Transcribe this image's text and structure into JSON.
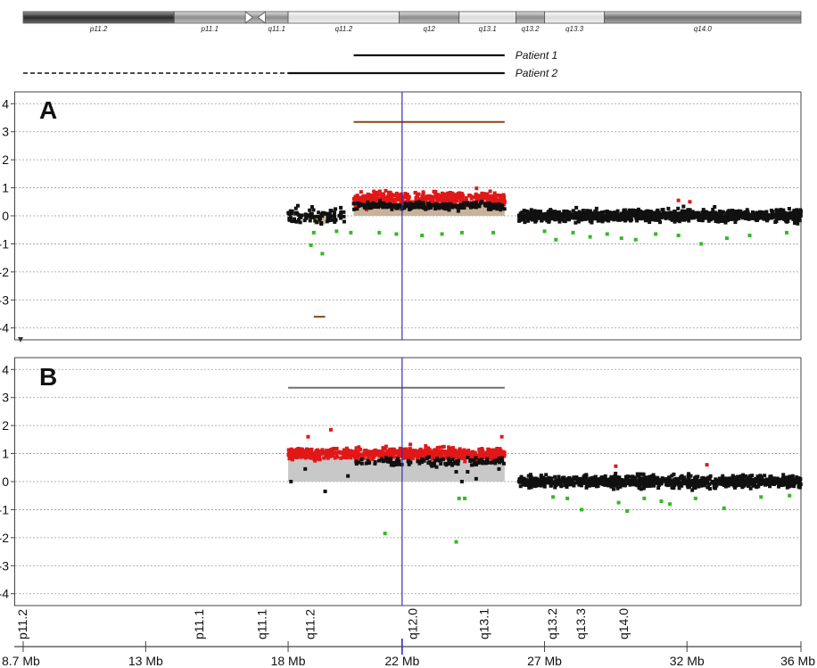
{
  "colors": {
    "gain": "#e01818",
    "neutral": "#111111",
    "loss": "#33bb22",
    "cursor": "#3030c0",
    "segmentA": "#8b4513",
    "shadeA": "#c8b39a",
    "shadeB": "#c8c8c8",
    "segmentB": "#707070"
  },
  "ideogram": {
    "bands": [
      {
        "name": "p11.2",
        "start": 8.7,
        "end": 14.0,
        "style": "dark"
      },
      {
        "name": "p11.1",
        "start": 14.0,
        "end": 16.5,
        "style": "gray"
      },
      {
        "name": "cen",
        "start": 16.5,
        "end": 17.2,
        "style": "centromere",
        "label": ""
      },
      {
        "name": "q11.1",
        "start": 17.2,
        "end": 18.0,
        "style": "gray"
      },
      {
        "name": "q11.2",
        "start": 18.0,
        "end": 21.9,
        "style": "light"
      },
      {
        "name": "q12",
        "start": 21.9,
        "end": 24.0,
        "style": "gray"
      },
      {
        "name": "q13.1",
        "start": 24.0,
        "end": 26.0,
        "style": "light"
      },
      {
        "name": "q13.2",
        "start": 26.0,
        "end": 27.0,
        "style": "gray"
      },
      {
        "name": "q13.3",
        "start": 27.0,
        "end": 29.1,
        "style": "light"
      },
      {
        "name": "q14.0",
        "start": 29.1,
        "end": 36.0,
        "style": "darkgray"
      }
    ]
  },
  "patients": [
    {
      "label": "Patient 1",
      "start": 20.3,
      "end": 25.6,
      "dashed_start": null
    },
    {
      "label": "Patient 2",
      "start": 18.0,
      "end": 25.6,
      "dashed_start": 8.7
    }
  ],
  "panel_a_label": "A",
  "panel_b_label": "B",
  "cursor_x": 22.0,
  "chart_data": [
    {
      "type": "scatter",
      "panel": "A",
      "title": "",
      "xlabel": "",
      "ylabel": "",
      "ylim": [
        -4.2,
        4.2
      ],
      "y_ticks": [
        "4",
        "3",
        "2",
        "1",
        "0",
        "-1",
        "-2",
        "-3",
        "-4"
      ],
      "grid": true,
      "segments": [
        {
          "start": 20.3,
          "end": 25.6,
          "value": 3.35
        },
        {
          "start": 18.9,
          "end": 19.3,
          "value": -3.6
        }
      ],
      "shaded_regions": [
        {
          "start": 20.3,
          "end": 25.6,
          "low": 0,
          "high": 0.5
        },
        {
          "start": 18.9,
          "end": 19.3,
          "low": -0.3,
          "high": 0
        }
      ],
      "series": [
        {
          "name": "",
          "level": 0.6,
          "start": 20.3,
          "end": 25.6,
          "spread": 0.25,
          "count": 500,
          "color": "gain"
        },
        {
          "name": "",
          "level": 0.35,
          "start": 20.3,
          "end": 25.6,
          "spread": 0.12,
          "count": 250,
          "color": "neutral"
        },
        {
          "name": "",
          "level": 0.0,
          "start": 18.0,
          "end": 20.0,
          "spread": 0.25,
          "count": 90,
          "color": "neutral"
        },
        {
          "name": "",
          "level": 0.0,
          "start": 26.1,
          "end": 36.0,
          "spread": 0.2,
          "count": 1100,
          "color": "neutral"
        }
      ],
      "outliers": [
        {
          "x": 18.9,
          "y": -0.6,
          "c": "loss"
        },
        {
          "x": 18.8,
          "y": -1.05,
          "c": "loss"
        },
        {
          "x": 19.2,
          "y": -1.35,
          "c": "loss"
        },
        {
          "x": 19.7,
          "y": -0.55,
          "c": "loss"
        },
        {
          "x": 20.2,
          "y": -0.6,
          "c": "loss"
        },
        {
          "x": 21.2,
          "y": -0.6,
          "c": "loss"
        },
        {
          "x": 21.8,
          "y": -0.65,
          "c": "loss"
        },
        {
          "x": 22.7,
          "y": -0.7,
          "c": "loss"
        },
        {
          "x": 23.4,
          "y": -0.65,
          "c": "loss"
        },
        {
          "x": 24.1,
          "y": -0.6,
          "c": "loss"
        },
        {
          "x": 25.2,
          "y": -0.6,
          "c": "loss"
        },
        {
          "x": 27.0,
          "y": -0.55,
          "c": "loss"
        },
        {
          "x": 27.4,
          "y": -0.85,
          "c": "loss"
        },
        {
          "x": 28.0,
          "y": -0.6,
          "c": "loss"
        },
        {
          "x": 28.6,
          "y": -0.75,
          "c": "loss"
        },
        {
          "x": 29.2,
          "y": -0.65,
          "c": "loss"
        },
        {
          "x": 29.7,
          "y": -0.8,
          "c": "loss"
        },
        {
          "x": 30.2,
          "y": -0.85,
          "c": "loss"
        },
        {
          "x": 30.9,
          "y": -0.65,
          "c": "loss"
        },
        {
          "x": 31.7,
          "y": -0.7,
          "c": "loss"
        },
        {
          "x": 32.5,
          "y": -1.0,
          "c": "loss"
        },
        {
          "x": 33.4,
          "y": -0.8,
          "c": "loss"
        },
        {
          "x": 34.2,
          "y": -0.7,
          "c": "loss"
        },
        {
          "x": 35.5,
          "y": -0.6,
          "c": "loss"
        },
        {
          "x": 31.7,
          "y": 0.55,
          "c": "gain"
        },
        {
          "x": 32.1,
          "y": 0.5,
          "c": "gain"
        }
      ]
    },
    {
      "type": "scatter",
      "panel": "B",
      "title": "",
      "xlabel": "",
      "ylabel": "",
      "ylim": [
        -4.2,
        4.2
      ],
      "y_ticks": [
        "4",
        "3",
        "2",
        "1",
        "0",
        "-1",
        "-2",
        "-3",
        "-4"
      ],
      "grid": true,
      "segments": [
        {
          "start": 18.0,
          "end": 25.6,
          "value": 3.35
        }
      ],
      "shaded_regions": [
        {
          "start": 18.0,
          "end": 25.6,
          "low": 0,
          "high": 1.1
        }
      ],
      "series": [
        {
          "name": "",
          "level": 1.0,
          "start": 18.0,
          "end": 25.6,
          "spread": 0.2,
          "count": 750,
          "color": "gain"
        },
        {
          "name": "",
          "level": 0.7,
          "start": 20.3,
          "end": 25.6,
          "spread": 0.15,
          "count": 120,
          "color": "neutral"
        },
        {
          "name": "",
          "level": 0.0,
          "start": 26.1,
          "end": 36.0,
          "spread": 0.2,
          "count": 1000,
          "color": "neutral"
        }
      ],
      "outliers": [
        {
          "x": 18.1,
          "y": 0.0,
          "c": "neutral"
        },
        {
          "x": 18.6,
          "y": 0.45,
          "c": "neutral"
        },
        {
          "x": 19.3,
          "y": -0.35,
          "c": "neutral"
        },
        {
          "x": 20.1,
          "y": 0.2,
          "c": "neutral"
        },
        {
          "x": 23.9,
          "y": 0.35,
          "c": "neutral"
        },
        {
          "x": 24.1,
          "y": 0.0,
          "c": "neutral"
        },
        {
          "x": 24.3,
          "y": 0.35,
          "c": "neutral"
        },
        {
          "x": 24.6,
          "y": 0.1,
          "c": "neutral"
        },
        {
          "x": 25.4,
          "y": 0.45,
          "c": "neutral"
        },
        {
          "x": 19.5,
          "y": 1.85,
          "c": "gain"
        },
        {
          "x": 18.7,
          "y": 1.6,
          "c": "gain"
        },
        {
          "x": 25.5,
          "y": 1.6,
          "c": "gain"
        },
        {
          "x": 29.5,
          "y": 0.55,
          "c": "gain"
        },
        {
          "x": 32.7,
          "y": 0.6,
          "c": "gain"
        },
        {
          "x": 21.4,
          "y": -1.85,
          "c": "loss"
        },
        {
          "x": 23.9,
          "y": -2.15,
          "c": "loss"
        },
        {
          "x": 24.0,
          "y": -0.6,
          "c": "loss"
        },
        {
          "x": 24.2,
          "y": -0.6,
          "c": "loss"
        },
        {
          "x": 27.3,
          "y": -0.55,
          "c": "loss"
        },
        {
          "x": 27.8,
          "y": -0.6,
          "c": "loss"
        },
        {
          "x": 28.3,
          "y": -1.0,
          "c": "loss"
        },
        {
          "x": 29.6,
          "y": -0.75,
          "c": "loss"
        },
        {
          "x": 29.9,
          "y": -1.05,
          "c": "loss"
        },
        {
          "x": 30.5,
          "y": -0.6,
          "c": "loss"
        },
        {
          "x": 31.1,
          "y": -0.7,
          "c": "loss"
        },
        {
          "x": 31.4,
          "y": -0.8,
          "c": "loss"
        },
        {
          "x": 32.3,
          "y": -0.6,
          "c": "loss"
        },
        {
          "x": 33.3,
          "y": -0.95,
          "c": "loss"
        },
        {
          "x": 34.6,
          "y": -0.55,
          "c": "loss"
        },
        {
          "x": 35.6,
          "y": -0.5,
          "c": "loss"
        }
      ]
    }
  ],
  "band_labels": [
    {
      "label": "p11.2",
      "x": 8.7
    },
    {
      "label": "p11.1",
      "x": 14.9
    },
    {
      "label": "q11.1",
      "x": 17.1
    },
    {
      "label": "q11.2",
      "x": 18.8
    },
    {
      "label": "q12.0",
      "x": 22.4
    },
    {
      "label": "q13.1",
      "x": 24.9
    },
    {
      "label": "q13.2",
      "x": 27.3
    },
    {
      "label": "q13.3",
      "x": 28.3
    },
    {
      "label": "q14.0",
      "x": 29.8
    }
  ],
  "x_axis": {
    "ticks": [
      {
        "value": 8.7,
        "label": "8.7 Mb"
      },
      {
        "value": 13,
        "label": "13 Mb"
      },
      {
        "value": 18,
        "label": "18 Mb"
      },
      {
        "value": 22,
        "label": "22 Mb"
      },
      {
        "value": 27,
        "label": "27 Mb"
      },
      {
        "value": 32,
        "label": "32 Mb"
      },
      {
        "value": 36,
        "label": "36 Mb"
      }
    ]
  }
}
